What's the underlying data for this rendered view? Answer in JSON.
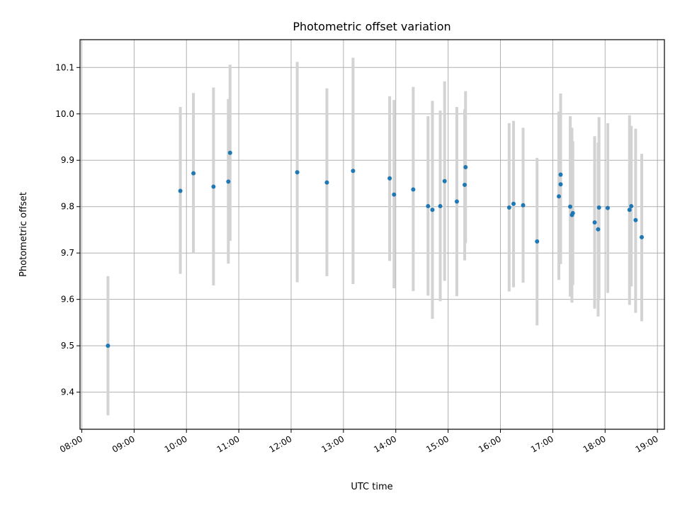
{
  "chart_data": {
    "type": "scatter",
    "title": "Photometric offset variation",
    "xlabel": "UTC time",
    "ylabel": "Photometric offset",
    "x_tick_labels": [
      "08:00",
      "09:00",
      "10:00",
      "11:00",
      "12:00",
      "13:00",
      "14:00",
      "15:00",
      "16:00",
      "17:00",
      "18:00",
      "19:00"
    ],
    "y_tick_labels": [
      "9.4",
      "9.5",
      "9.6",
      "9.7",
      "9.8",
      "9.9",
      "10.0",
      "10.1"
    ],
    "ylim": [
      9.32,
      10.16
    ],
    "xlim": [
      "07:58",
      "19:08"
    ],
    "grid": true,
    "errorbar_color": "#d3d3d3",
    "point_color": "#1f77b4",
    "points": [
      {
        "x": "08:30",
        "y": 9.5,
        "ylo": 9.35,
        "yhi": 9.65
      },
      {
        "x": "09:53",
        "y": 9.834,
        "ylo": 9.655,
        "yhi": 10.015
      },
      {
        "x": "10:08",
        "y": 9.872,
        "ylo": 9.7,
        "yhi": 10.045
      },
      {
        "x": "10:31",
        "y": 9.843,
        "ylo": 9.63,
        "yhi": 10.057
      },
      {
        "x": "10:48",
        "y": 9.854,
        "ylo": 9.677,
        "yhi": 10.032
      },
      {
        "x": "10:50",
        "y": 9.916,
        "ylo": 9.726,
        "yhi": 10.106
      },
      {
        "x": "12:07",
        "y": 9.874,
        "ylo": 9.637,
        "yhi": 10.112
      },
      {
        "x": "12:41",
        "y": 9.852,
        "ylo": 9.65,
        "yhi": 10.055
      },
      {
        "x": "13:11",
        "y": 9.877,
        "ylo": 9.633,
        "yhi": 10.121
      },
      {
        "x": "13:53",
        "y": 9.861,
        "ylo": 9.683,
        "yhi": 10.038
      },
      {
        "x": "13:58",
        "y": 9.826,
        "ylo": 9.624,
        "yhi": 10.03
      },
      {
        "x": "14:20",
        "y": 9.837,
        "ylo": 9.618,
        "yhi": 10.058
      },
      {
        "x": "14:37",
        "y": 9.801,
        "ylo": 9.608,
        "yhi": 9.995
      },
      {
        "x": "14:42",
        "y": 9.793,
        "ylo": 9.558,
        "yhi": 10.028
      },
      {
        "x": "14:51",
        "y": 9.801,
        "ylo": 9.596,
        "yhi": 10.007
      },
      {
        "x": "14:56",
        "y": 9.855,
        "ylo": 9.64,
        "yhi": 10.07
      },
      {
        "x": "15:10",
        "y": 9.811,
        "ylo": 9.607,
        "yhi": 10.015
      },
      {
        "x": "15:19",
        "y": 9.847,
        "ylo": 9.684,
        "yhi": 10.01
      },
      {
        "x": "15:20",
        "y": 9.885,
        "ylo": 9.721,
        "yhi": 10.049
      },
      {
        "x": "16:10",
        "y": 9.798,
        "ylo": 9.617,
        "yhi": 9.98
      },
      {
        "x": "16:15",
        "y": 9.806,
        "ylo": 9.626,
        "yhi": 9.985
      },
      {
        "x": "16:26",
        "y": 9.803,
        "ylo": 9.636,
        "yhi": 9.97
      },
      {
        "x": "16:42",
        "y": 9.725,
        "ylo": 9.544,
        "yhi": 9.905
      },
      {
        "x": "17:07",
        "y": 9.822,
        "ylo": 9.642,
        "yhi": 10.005
      },
      {
        "x": "17:09",
        "y": 9.848,
        "ylo": 9.676,
        "yhi": 10.044
      },
      {
        "x": "17:09",
        "y": 9.869,
        "ylo": 9.696,
        "yhi": 10.043
      },
      {
        "x": "17:20",
        "y": 9.8,
        "ylo": 9.606,
        "yhi": 9.995
      },
      {
        "x": "17:22",
        "y": 9.782,
        "ylo": 9.593,
        "yhi": 9.97
      },
      {
        "x": "17:23",
        "y": 9.786,
        "ylo": 9.631,
        "yhi": 9.941
      },
      {
        "x": "17:48",
        "y": 9.766,
        "ylo": 9.58,
        "yhi": 9.952
      },
      {
        "x": "17:52",
        "y": 9.751,
        "ylo": 9.563,
        "yhi": 9.938
      },
      {
        "x": "17:53",
        "y": 9.798,
        "ylo": 9.602,
        "yhi": 9.993
      },
      {
        "x": "18:03",
        "y": 9.797,
        "ylo": 9.614,
        "yhi": 9.98
      },
      {
        "x": "18:28",
        "y": 9.793,
        "ylo": 9.588,
        "yhi": 9.997
      },
      {
        "x": "18:30",
        "y": 9.801,
        "ylo": 9.628,
        "yhi": 9.974
      },
      {
        "x": "18:35",
        "y": 9.771,
        "ylo": 9.571,
        "yhi": 9.968
      },
      {
        "x": "18:42",
        "y": 9.734,
        "ylo": 9.553,
        "yhi": 9.914
      }
    ]
  }
}
